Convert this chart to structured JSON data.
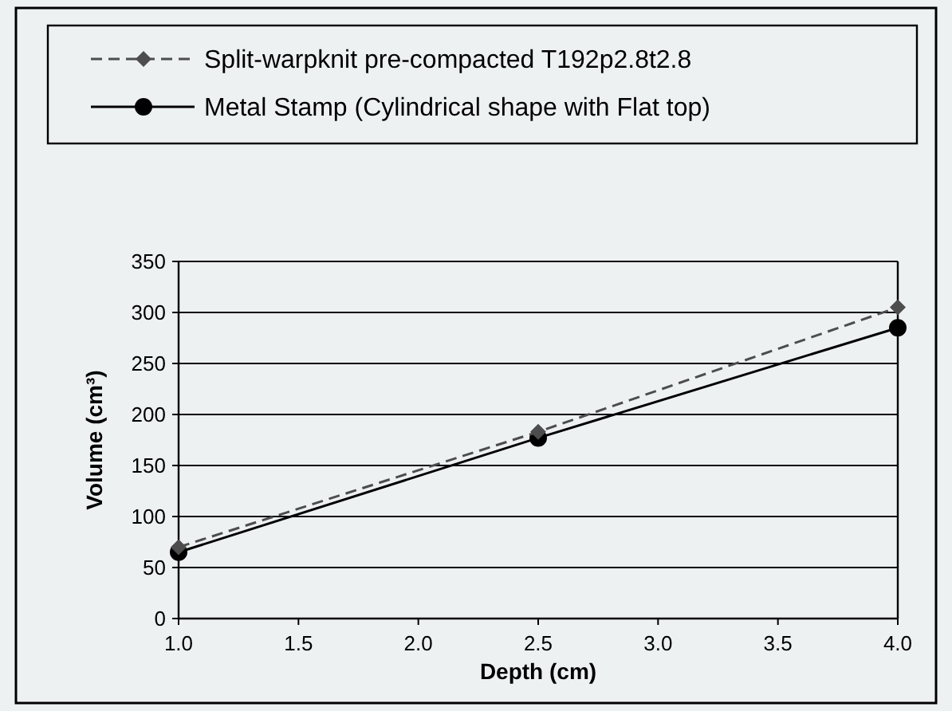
{
  "chart_data": {
    "type": "line",
    "xlabel": "Depth (cm)",
    "ylabel": "Volume (cm³)",
    "x": [
      1.0,
      2.5,
      4.0
    ],
    "series": [
      {
        "name": "Split-warpknit pre-compacted T192p2.8t2.8",
        "color": "#4d4d4d",
        "values": [
          70,
          183,
          305
        ],
        "marker": "diamond",
        "line_style": "dashed"
      },
      {
        "name": "Metal Stamp (Cylindrical shape with Flat top)",
        "color": "#000000",
        "values": [
          65,
          177,
          285
        ],
        "marker": "circle",
        "line_style": "solid"
      }
    ],
    "xlim": [
      1.0,
      4.0
    ],
    "xticks": [
      {
        "value": 1,
        "label": "1.0"
      },
      {
        "value": 1.5,
        "label": "1.5"
      },
      {
        "value": 2,
        "label": "2.0"
      },
      {
        "value": 2.5,
        "label": "2.5"
      },
      {
        "value": 3,
        "label": "3.0"
      },
      {
        "value": 3.5,
        "label": "3.5"
      },
      {
        "value": 4,
        "label": "4.0"
      }
    ],
    "ylim": [
      0,
      350
    ],
    "yticks": [
      0,
      50,
      100,
      150,
      200,
      250,
      300,
      350
    ],
    "grid": "y",
    "legend": "top"
  }
}
